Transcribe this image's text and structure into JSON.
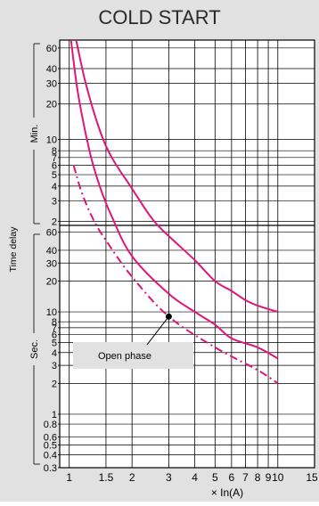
{
  "colors": {
    "panel": "#e1e1e1",
    "plot_bg": "#ffffff",
    "grid": "#000000",
    "curve": "#e0157a",
    "text": "#000000",
    "title": "#2a2a2a"
  },
  "chart_data": {
    "type": "line",
    "title": "COLD START",
    "xlabel": "× In(A)",
    "ylabel": "Time delay",
    "x_scale": "log",
    "y_scale": "log",
    "grid": true,
    "xlim": [
      0.9,
      15
    ],
    "xticks": [
      {
        "value": 1,
        "label": "1"
      },
      {
        "value": 1.5,
        "label": "1.5"
      },
      {
        "value": 2,
        "label": "2"
      },
      {
        "value": 3,
        "label": "3"
      },
      {
        "value": 4,
        "label": "4"
      },
      {
        "value": 5,
        "label": "5"
      },
      {
        "value": 6,
        "label": "6"
      },
      {
        "value": 7,
        "label": "7"
      },
      {
        "value": 8,
        "label": "8"
      },
      {
        "value": 9,
        "label": "9"
      },
      {
        "value": 10,
        "label": "10"
      },
      {
        "value": 15,
        "label": "15"
      }
    ],
    "y_bands": [
      {
        "unit": "Min.",
        "range": [
          1.85,
          70
        ],
        "ticks": [
          60,
          40,
          30,
          20,
          10,
          8,
          7,
          6,
          5,
          4,
          3,
          2
        ],
        "tick_labels": [
          "60",
          "40",
          "30",
          "20",
          "10",
          "8",
          "7",
          "6",
          "5",
          "4",
          "3",
          "2"
        ]
      },
      {
        "unit": "Sec.",
        "range": [
          0.3,
          70
        ],
        "ticks": [
          60,
          40,
          30,
          20,
          10,
          8,
          7,
          6,
          5,
          4,
          3,
          2,
          1,
          0.8,
          0.6,
          0.5,
          0.4,
          0.3
        ],
        "tick_labels": [
          "60",
          "40",
          "30",
          "20",
          "10",
          "8",
          "7",
          "6",
          "5",
          "4",
          "3",
          "2",
          "1",
          "0.8",
          "0.6",
          "0.5",
          "0.4",
          "0.3"
        ]
      }
    ],
    "series": [
      {
        "style": "solid",
        "points": [
          {
            "x": 1.08,
            "unit": "min",
            "y": 70
          },
          {
            "x": 1.2,
            "unit": "min",
            "y": 30
          },
          {
            "x": 1.4,
            "unit": "min",
            "y": 12
          },
          {
            "x": 1.6,
            "unit": "min",
            "y": 7
          },
          {
            "x": 2,
            "unit": "min",
            "y": 3.8
          },
          {
            "x": 2.5,
            "unit": "min",
            "y": 2.1
          },
          {
            "x": 3,
            "unit": "sec",
            "y": 55
          },
          {
            "x": 4,
            "unit": "sec",
            "y": 32
          },
          {
            "x": 5,
            "unit": "sec",
            "y": 20
          },
          {
            "x": 6,
            "unit": "sec",
            "y": 16
          },
          {
            "x": 7,
            "unit": "sec",
            "y": 13
          },
          {
            "x": 8,
            "unit": "sec",
            "y": 11.5
          },
          {
            "x": 10,
            "unit": "sec",
            "y": 10
          }
        ]
      },
      {
        "style": "solid",
        "points": [
          {
            "x": 1.02,
            "unit": "min",
            "y": 70
          },
          {
            "x": 1.1,
            "unit": "min",
            "y": 25
          },
          {
            "x": 1.25,
            "unit": "min",
            "y": 8
          },
          {
            "x": 1.4,
            "unit": "min",
            "y": 4
          },
          {
            "x": 1.6,
            "unit": "min",
            "y": 2.2
          },
          {
            "x": 2,
            "unit": "sec",
            "y": 35
          },
          {
            "x": 3,
            "unit": "sec",
            "y": 15
          },
          {
            "x": 4,
            "unit": "sec",
            "y": 10
          },
          {
            "x": 5,
            "unit": "sec",
            "y": 7.5
          },
          {
            "x": 6,
            "unit": "sec",
            "y": 5.5
          },
          {
            "x": 8,
            "unit": "sec",
            "y": 4.5
          },
          {
            "x": 10,
            "unit": "sec",
            "y": 3.5
          }
        ]
      },
      {
        "style": "dash-dot",
        "points": [
          {
            "x": 1.05,
            "unit": "min",
            "y": 6
          },
          {
            "x": 1.15,
            "unit": "min",
            "y": 3.5
          },
          {
            "x": 1.3,
            "unit": "min",
            "y": 2.1
          },
          {
            "x": 1.5,
            "unit": "sec",
            "y": 50
          },
          {
            "x": 2,
            "unit": "sec",
            "y": 22
          },
          {
            "x": 3,
            "unit": "sec",
            "y": 9
          },
          {
            "x": 5,
            "unit": "sec",
            "y": 4.5
          },
          {
            "x": 8,
            "unit": "sec",
            "y": 2.7
          },
          {
            "x": 10,
            "unit": "sec",
            "y": 2
          }
        ]
      }
    ],
    "annotations": [
      {
        "text": "Open phase",
        "points_to": {
          "x": 3,
          "unit": "sec",
          "y": 9
        }
      }
    ]
  }
}
